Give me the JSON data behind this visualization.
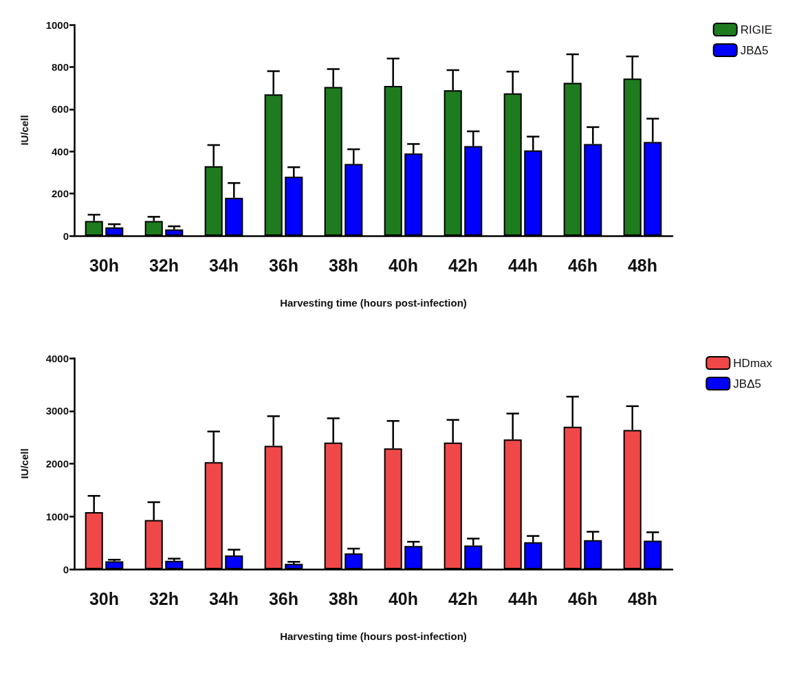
{
  "chart_data": [
    {
      "type": "bar",
      "ylabel": "IU/cell",
      "xlabel": "Harvesting time (hours post-infection)",
      "categories": [
        "30h",
        "32h",
        "34h",
        "36h",
        "38h",
        "40h",
        "42h",
        "44h",
        "46h",
        "48h"
      ],
      "ylim": [
        0,
        1000
      ],
      "yticks": [
        0,
        200,
        400,
        600,
        800,
        1000
      ],
      "legend": "top right",
      "grid": false,
      "series": [
        {
          "name": "RIGIE",
          "color": "#1e7b1e",
          "values": [
            70,
            70,
            330,
            670,
            705,
            710,
            690,
            675,
            725,
            745
          ],
          "errors": [
            [
              70,
              100
            ],
            [
              70,
              90
            ],
            [
              330,
              430
            ],
            [
              670,
              780
            ],
            [
              705,
              790
            ],
            [
              710,
              840
            ],
            [
              690,
              785
            ],
            [
              675,
              778
            ],
            [
              725,
              860
            ],
            [
              745,
              850
            ]
          ]
        },
        {
          "name": "JBΔ5",
          "color": "#0000ff",
          "values": [
            40,
            30,
            180,
            280,
            340,
            390,
            425,
            405,
            435,
            445
          ],
          "errors": [
            [
              40,
              55
            ],
            [
              30,
              45
            ],
            [
              180,
              250
            ],
            [
              280,
              325
            ],
            [
              340,
              410
            ],
            [
              390,
              435
            ],
            [
              425,
              495
            ],
            [
              405,
              470
            ],
            [
              435,
              515
            ],
            [
              445,
              555
            ]
          ]
        }
      ]
    },
    {
      "type": "bar",
      "ylabel": "IU/cell",
      "xlabel": "Harvesting time (hours post-infection)",
      "categories": [
        "30h",
        "32h",
        "34h",
        "36h",
        "38h",
        "40h",
        "42h",
        "44h",
        "46h",
        "48h"
      ],
      "ylim": [
        0,
        4000
      ],
      "yticks": [
        0,
        1000,
        2000,
        3000,
        4000
      ],
      "legend": "top right",
      "grid": false,
      "series": [
        {
          "name": "HDmax",
          "color": "#f04848",
          "values": [
            1080,
            930,
            2030,
            2340,
            2400,
            2290,
            2400,
            2460,
            2700,
            2640
          ],
          "errors": [
            [
              1080,
              1390
            ],
            [
              930,
              1270
            ],
            [
              2030,
              2610
            ],
            [
              2340,
              2900
            ],
            [
              2400,
              2860
            ],
            [
              2290,
              2810
            ],
            [
              2400,
              2830
            ],
            [
              2460,
              2950
            ],
            [
              2700,
              3270
            ],
            [
              2640,
              3090
            ]
          ]
        },
        {
          "name": "JBΔ5",
          "color": "#0000ff",
          "values": [
            150,
            160,
            260,
            100,
            300,
            440,
            450,
            510,
            550,
            540
          ],
          "errors": [
            [
              150,
              180
            ],
            [
              160,
              200
            ],
            [
              260,
              370
            ],
            [
              100,
              140
            ],
            [
              300,
              390
            ],
            [
              440,
              520
            ],
            [
              450,
              580
            ],
            [
              510,
              630
            ],
            [
              550,
              710
            ],
            [
              540,
              700
            ]
          ]
        }
      ]
    }
  ]
}
